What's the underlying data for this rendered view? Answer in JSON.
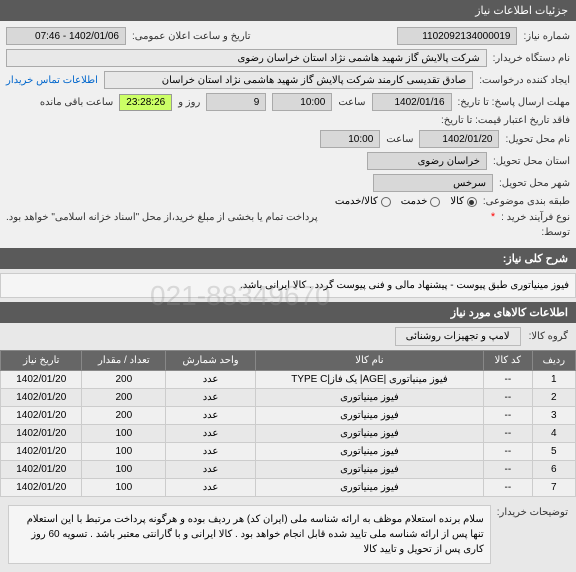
{
  "header": {
    "title": "جزئیات اطلاعات نیاز"
  },
  "form": {
    "need_number_label": "شماره نیاز:",
    "need_number": "1102092134000019",
    "announce_date_label": "تاریخ و ساعت اعلان عمومی:",
    "announce_date": "1402/01/06 - 07:46",
    "buyer_label": "نام دستگاه خریدار:",
    "buyer": "شرکت پالایش گاز شهید هاشمی نژاد   استان خراسان رضوی",
    "creator_label": "ایجاد کننده درخواست:",
    "creator": "صادق تقدیسی کارمند شرکت پالایش گاز شهید هاشمی نژاد   استان خراسان",
    "contact_link": "اطلاعات تماس خریدار",
    "deadline_label": "مهلت ارسال پاسخ: تا تاریخ:",
    "deadline_date": "1402/01/16",
    "time_label": "ساعت",
    "deadline_time": "10:00",
    "day_label": "روز و",
    "days": "9",
    "countdown": "23:28:26",
    "remaining": "ساعت باقی مانده",
    "credit_label": "فاقد تاریخ اعتبار قیمت: تا تاریخ:",
    "delivery_label": "نام محل تحویل:",
    "delivery_date": "1402/01/20",
    "delivery_time": "10:00",
    "province_label": "استان محل تحویل:",
    "province": "خراسان رضوی",
    "city_label": "شهر محل تحویل:",
    "city": "سرخس",
    "category_label": "طبقه بندی موضوعی:",
    "radio_goods": "کالا",
    "radio_service": "خدمت",
    "radio_both": "کالا/خدمت",
    "process_label": "نوع فرآیند خرید :",
    "process_star": "*",
    "payment_note": "پرداخت تمام یا بخشی از مبلغ خرید،از محل \"اسناد خزانه اسلامی\" خواهد بود.",
    "mediator_label": "توسط:"
  },
  "need_desc": {
    "section_title": "شرح کلی نیاز:",
    "text": "فیوز مینیاتوری طبق پیوست - پیشنهاد مالی و فنی پیوست گردد . کالا ایرانی باشد."
  },
  "goods_info": {
    "section_title": "اطلاعات کالاهای مورد نیاز",
    "group_label": "گروه کالا:",
    "group_value": "لامپ و تجهیزات روشنائی"
  },
  "table": {
    "columns": [
      "ردیف",
      "کد کالا",
      "نام کالا",
      "واحد شمارش",
      "تعداد / مقدار",
      "تاریخ نیاز"
    ],
    "rows": [
      [
        "1",
        "--",
        "فیوز مینیاتوری |AGE| یک فاز|TYPE C",
        "عدد",
        "200",
        "1402/01/20"
      ],
      [
        "2",
        "--",
        "فیوز مینیاتوری",
        "عدد",
        "200",
        "1402/01/20"
      ],
      [
        "3",
        "--",
        "فیوز مینیاتوری",
        "عدد",
        "200",
        "1402/01/20"
      ],
      [
        "4",
        "--",
        "فیوز مینیاتوری",
        "عدد",
        "100",
        "1402/01/20"
      ],
      [
        "5",
        "--",
        "فیوز مینیاتوری",
        "عدد",
        "100",
        "1402/01/20"
      ],
      [
        "6",
        "--",
        "فیوز مینیاتوری",
        "عدد",
        "100",
        "1402/01/20"
      ],
      [
        "7",
        "--",
        "فیوز مینیاتوری",
        "عدد",
        "100",
        "1402/01/20"
      ]
    ]
  },
  "buyer_note": {
    "label": "توضیحات خریدار:",
    "text": "سلام  برنده استعلام موظف به ارائه شناسه ملی (ایران کد) هر ردیف بوده و هرگونه پرداخت مرتبط با این استعلام تنها پس از ارائه شناسه ملی تایید شده قابل انجام خواهد بود . کالا ایرانی و با گارانتی معتبر باشد . تسویه 60 روز کاری پس از تحویل و تایید کالا"
  },
  "watermark": "021-88349670"
}
